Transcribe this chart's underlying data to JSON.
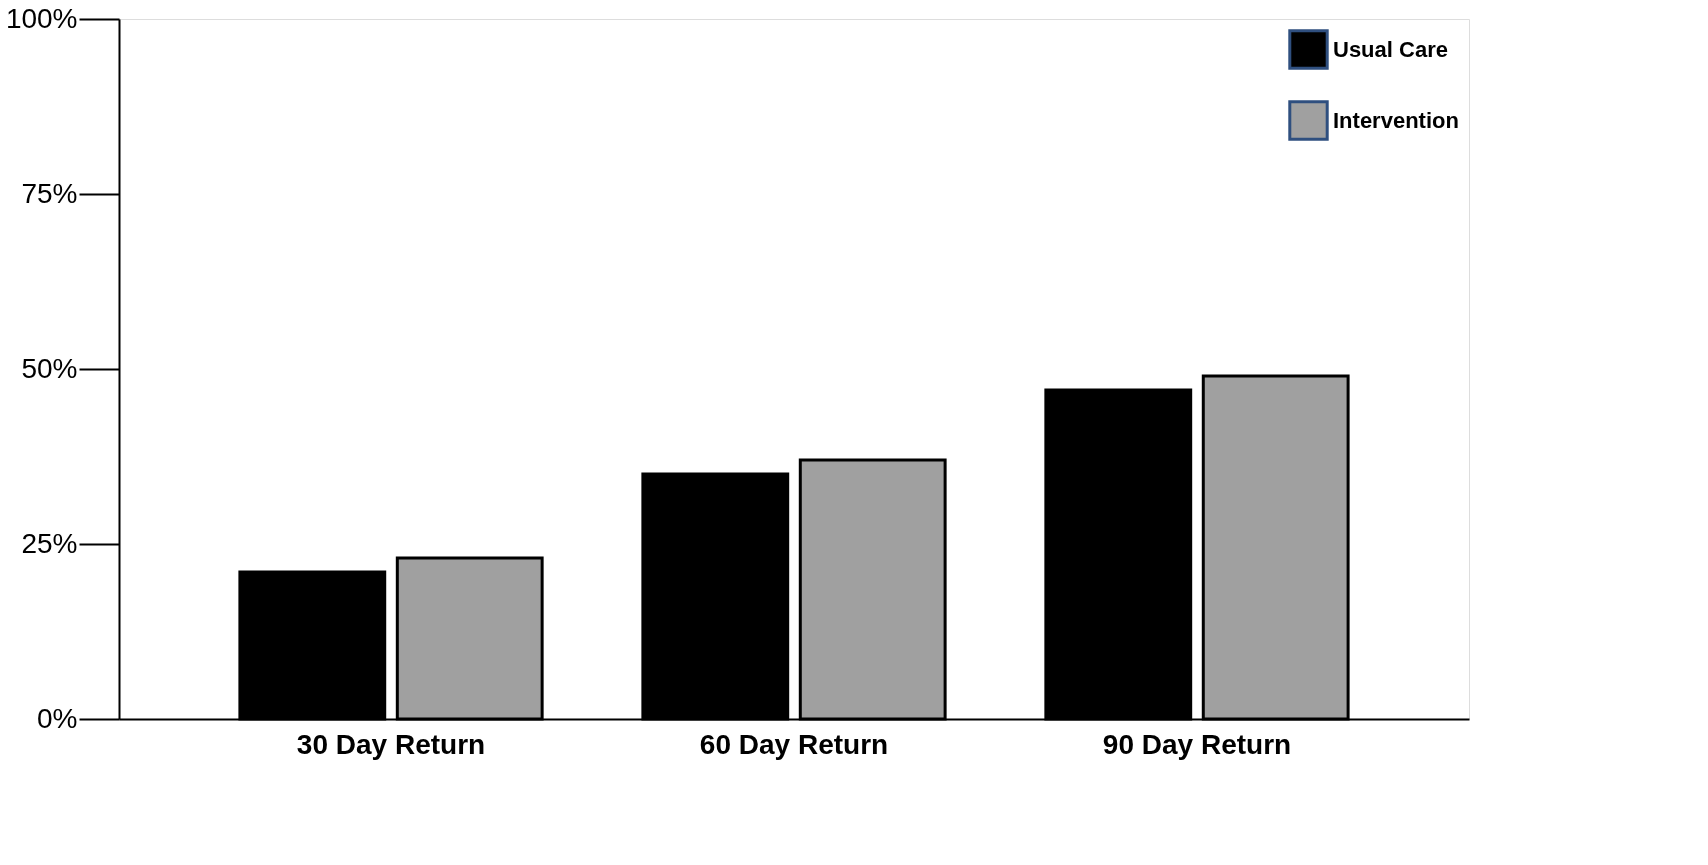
{
  "chart_data": {
    "type": "bar",
    "categories": [
      "30 Day Return",
      "60 Day Return",
      "90 Day Return"
    ],
    "series": [
      {
        "name": "Usual Care",
        "color": "#000000",
        "values": [
          21,
          35,
          47
        ]
      },
      {
        "name": "Intervention",
        "color": "#a0a0a0",
        "values": [
          23,
          37,
          49
        ]
      }
    ],
    "ylim": [
      0,
      100
    ],
    "yticks": [
      {
        "value": 0,
        "label": "0%"
      },
      {
        "value": 25,
        "label": "25%"
      },
      {
        "value": 50,
        "label": "50%"
      },
      {
        "value": 75,
        "label": "75%"
      },
      {
        "value": 100,
        "label": "100%"
      }
    ],
    "grid": false,
    "legend": "top right"
  }
}
